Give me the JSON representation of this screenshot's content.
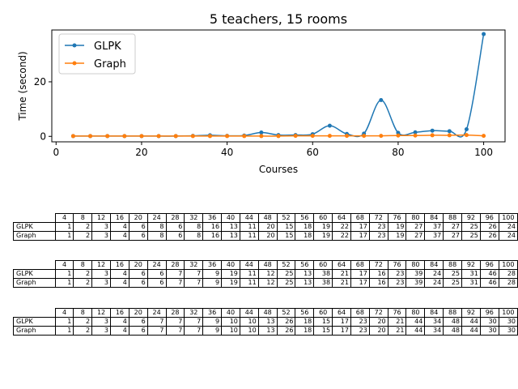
{
  "chart_data": {
    "type": "line",
    "title": "5 teachers, 15 rooms",
    "xlabel": "Courses",
    "ylabel": "Time (second)",
    "xlim": [
      -1,
      105
    ],
    "ylim": [
      -2,
      39
    ],
    "xticks": [
      0,
      20,
      40,
      60,
      80,
      100
    ],
    "yticks": [
      0,
      20
    ],
    "legend": "top-left",
    "grid": false,
    "x": [
      4,
      8,
      12,
      16,
      20,
      24,
      28,
      32,
      36,
      40,
      44,
      48,
      52,
      56,
      60,
      64,
      68,
      72,
      76,
      80,
      84,
      88,
      92,
      96,
      100
    ],
    "series": [
      {
        "name": "GLPK",
        "color": "#1f77b4",
        "values": [
          0.1,
          0.1,
          0.1,
          0.1,
          0.1,
          0.1,
          0.1,
          0.2,
          0.4,
          0.2,
          0.3,
          1.4,
          0.5,
          0.5,
          0.8,
          3.9,
          0.9,
          1.0,
          13.3,
          1.3,
          1.5,
          2.1,
          1.9,
          2.6,
          37.5
        ]
      },
      {
        "name": "Graph",
        "color": "#ff7f0e",
        "values": [
          0.1,
          0.1,
          0.1,
          0.1,
          0.1,
          0.1,
          0.1,
          0.1,
          0.1,
          0.1,
          0.1,
          0.1,
          0.1,
          0.2,
          0.2,
          0.2,
          0.2,
          0.2,
          0.2,
          0.3,
          0.3,
          0.4,
          0.4,
          0.5,
          0.2
        ]
      }
    ]
  },
  "tables": [
    {
      "header": [
        "4",
        "8",
        "12",
        "16",
        "20",
        "24",
        "28",
        "32",
        "36",
        "40",
        "44",
        "48",
        "52",
        "56",
        "60",
        "64",
        "68",
        "72",
        "76",
        "80",
        "84",
        "88",
        "92",
        "96",
        "100"
      ],
      "rows": [
        {
          "label": "GLPK",
          "cells": [
            "1",
            "2",
            "3",
            "4",
            "6",
            "8",
            "6",
            "8",
            "16",
            "13",
            "11",
            "20",
            "15",
            "18",
            "19",
            "22",
            "17",
            "23",
            "19",
            "27",
            "37",
            "27",
            "25",
            "26",
            "24"
          ]
        },
        {
          "label": "Graph",
          "cells": [
            "1",
            "2",
            "3",
            "4",
            "6",
            "8",
            "6",
            "8",
            "16",
            "13",
            "11",
            "20",
            "15",
            "18",
            "19",
            "22",
            "17",
            "23",
            "19",
            "27",
            "37",
            "27",
            "25",
            "26",
            "24"
          ]
        }
      ]
    },
    {
      "header": [
        "4",
        "8",
        "12",
        "16",
        "20",
        "24",
        "28",
        "32",
        "36",
        "40",
        "44",
        "48",
        "52",
        "56",
        "60",
        "64",
        "68",
        "72",
        "76",
        "80",
        "84",
        "88",
        "92",
        "96",
        "100"
      ],
      "rows": [
        {
          "label": "GLPK",
          "cells": [
            "1",
            "2",
            "3",
            "4",
            "6",
            "6",
            "7",
            "7",
            "9",
            "19",
            "11",
            "12",
            "25",
            "13",
            "38",
            "21",
            "17",
            "16",
            "23",
            "39",
            "24",
            "25",
            "31",
            "46",
            "28"
          ]
        },
        {
          "label": "Graph",
          "cells": [
            "1",
            "2",
            "3",
            "4",
            "6",
            "6",
            "7",
            "7",
            "9",
            "19",
            "11",
            "12",
            "25",
            "13",
            "38",
            "21",
            "17",
            "16",
            "23",
            "39",
            "24",
            "25",
            "31",
            "46",
            "28"
          ]
        }
      ]
    },
    {
      "header": [
        "4",
        "8",
        "12",
        "16",
        "20",
        "24",
        "28",
        "32",
        "36",
        "40",
        "44",
        "48",
        "52",
        "56",
        "60",
        "64",
        "68",
        "72",
        "76",
        "80",
        "84",
        "88",
        "92",
        "96",
        "100"
      ],
      "rows": [
        {
          "label": "GLPK",
          "cells": [
            "1",
            "2",
            "3",
            "4",
            "6",
            "7",
            "7",
            "7",
            "9",
            "10",
            "10",
            "13",
            "26",
            "18",
            "15",
            "17",
            "23",
            "20",
            "21",
            "44",
            "34",
            "48",
            "44",
            "30",
            "30"
          ]
        },
        {
          "label": "Graph",
          "cells": [
            "1",
            "2",
            "3",
            "4",
            "6",
            "7",
            "7",
            "7",
            "9",
            "10",
            "10",
            "13",
            "26",
            "18",
            "15",
            "17",
            "23",
            "20",
            "21",
            "44",
            "34",
            "48",
            "44",
            "30",
            "30"
          ]
        }
      ]
    }
  ]
}
